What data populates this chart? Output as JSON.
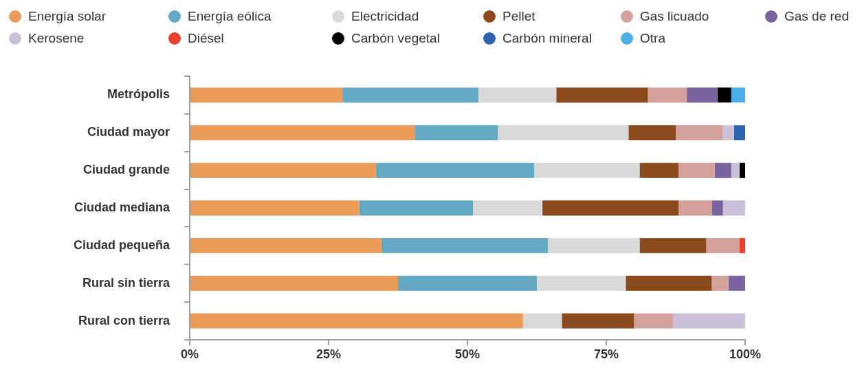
{
  "chart_data": {
    "type": "bar",
    "orientation": "horizontal",
    "stacked": true,
    "legend": "top",
    "categories": [
      "Metrópolis",
      "Ciudad mayor",
      "Ciudad grande",
      "Ciudad mediana",
      "Ciudad pequeña",
      "Rural sin tierra",
      "Rural con tierra"
    ],
    "series": [
      {
        "name": "Energía solar",
        "color": "#e99b57",
        "values": [
          27.5,
          40.5,
          33.5,
          30.5,
          34.5,
          37.5,
          60
        ]
      },
      {
        "name": "Energía eólica",
        "color": "#64a9c3",
        "values": [
          24.5,
          15,
          28.5,
          20.5,
          30,
          25,
          null
        ]
      },
      {
        "name": "Electricidad",
        "color": "#d9d9d9",
        "values": [
          14,
          23.5,
          19,
          12.5,
          16.5,
          16,
          7
        ]
      },
      {
        "name": "Pellet",
        "color": "#8b4a1e",
        "values": [
          16.5,
          8.5,
          7,
          24.5,
          12,
          15.5,
          13
        ]
      },
      {
        "name": "Gas licuado",
        "color": "#d4a09c",
        "values": [
          7,
          8.5,
          6.5,
          6,
          6,
          3,
          7
        ]
      },
      {
        "name": "Gas de red",
        "color": "#7b63a0",
        "values": [
          5.5,
          null,
          3,
          2,
          null,
          3,
          null
        ]
      },
      {
        "name": "Kerosene",
        "color": "#cbc0d9",
        "values": [
          null,
          2,
          1.5,
          4,
          null,
          null,
          13
        ]
      },
      {
        "name": "Diésel",
        "color": "#e8412f",
        "values": [
          null,
          null,
          null,
          null,
          1,
          null,
          null
        ]
      },
      {
        "name": "Carbón vegetal",
        "color": "#000000",
        "values": [
          2.5,
          null,
          1,
          null,
          null,
          null,
          null
        ]
      },
      {
        "name": "Carbón mineral",
        "color": "#2e64ae",
        "values": [
          null,
          2,
          null,
          null,
          null,
          null,
          null
        ]
      },
      {
        "name": "Otra",
        "color": "#4eaee8",
        "values": [
          2.5,
          null,
          null,
          null,
          null,
          null,
          null
        ]
      }
    ],
    "xlim": [
      0,
      100
    ],
    "xticks": [
      {
        "value": 0,
        "label": "0%"
      },
      {
        "value": 25,
        "label": "25%"
      },
      {
        "value": 50,
        "label": "50%"
      },
      {
        "value": 75,
        "label": "75%"
      },
      {
        "value": 100,
        "label": "100%"
      }
    ]
  }
}
